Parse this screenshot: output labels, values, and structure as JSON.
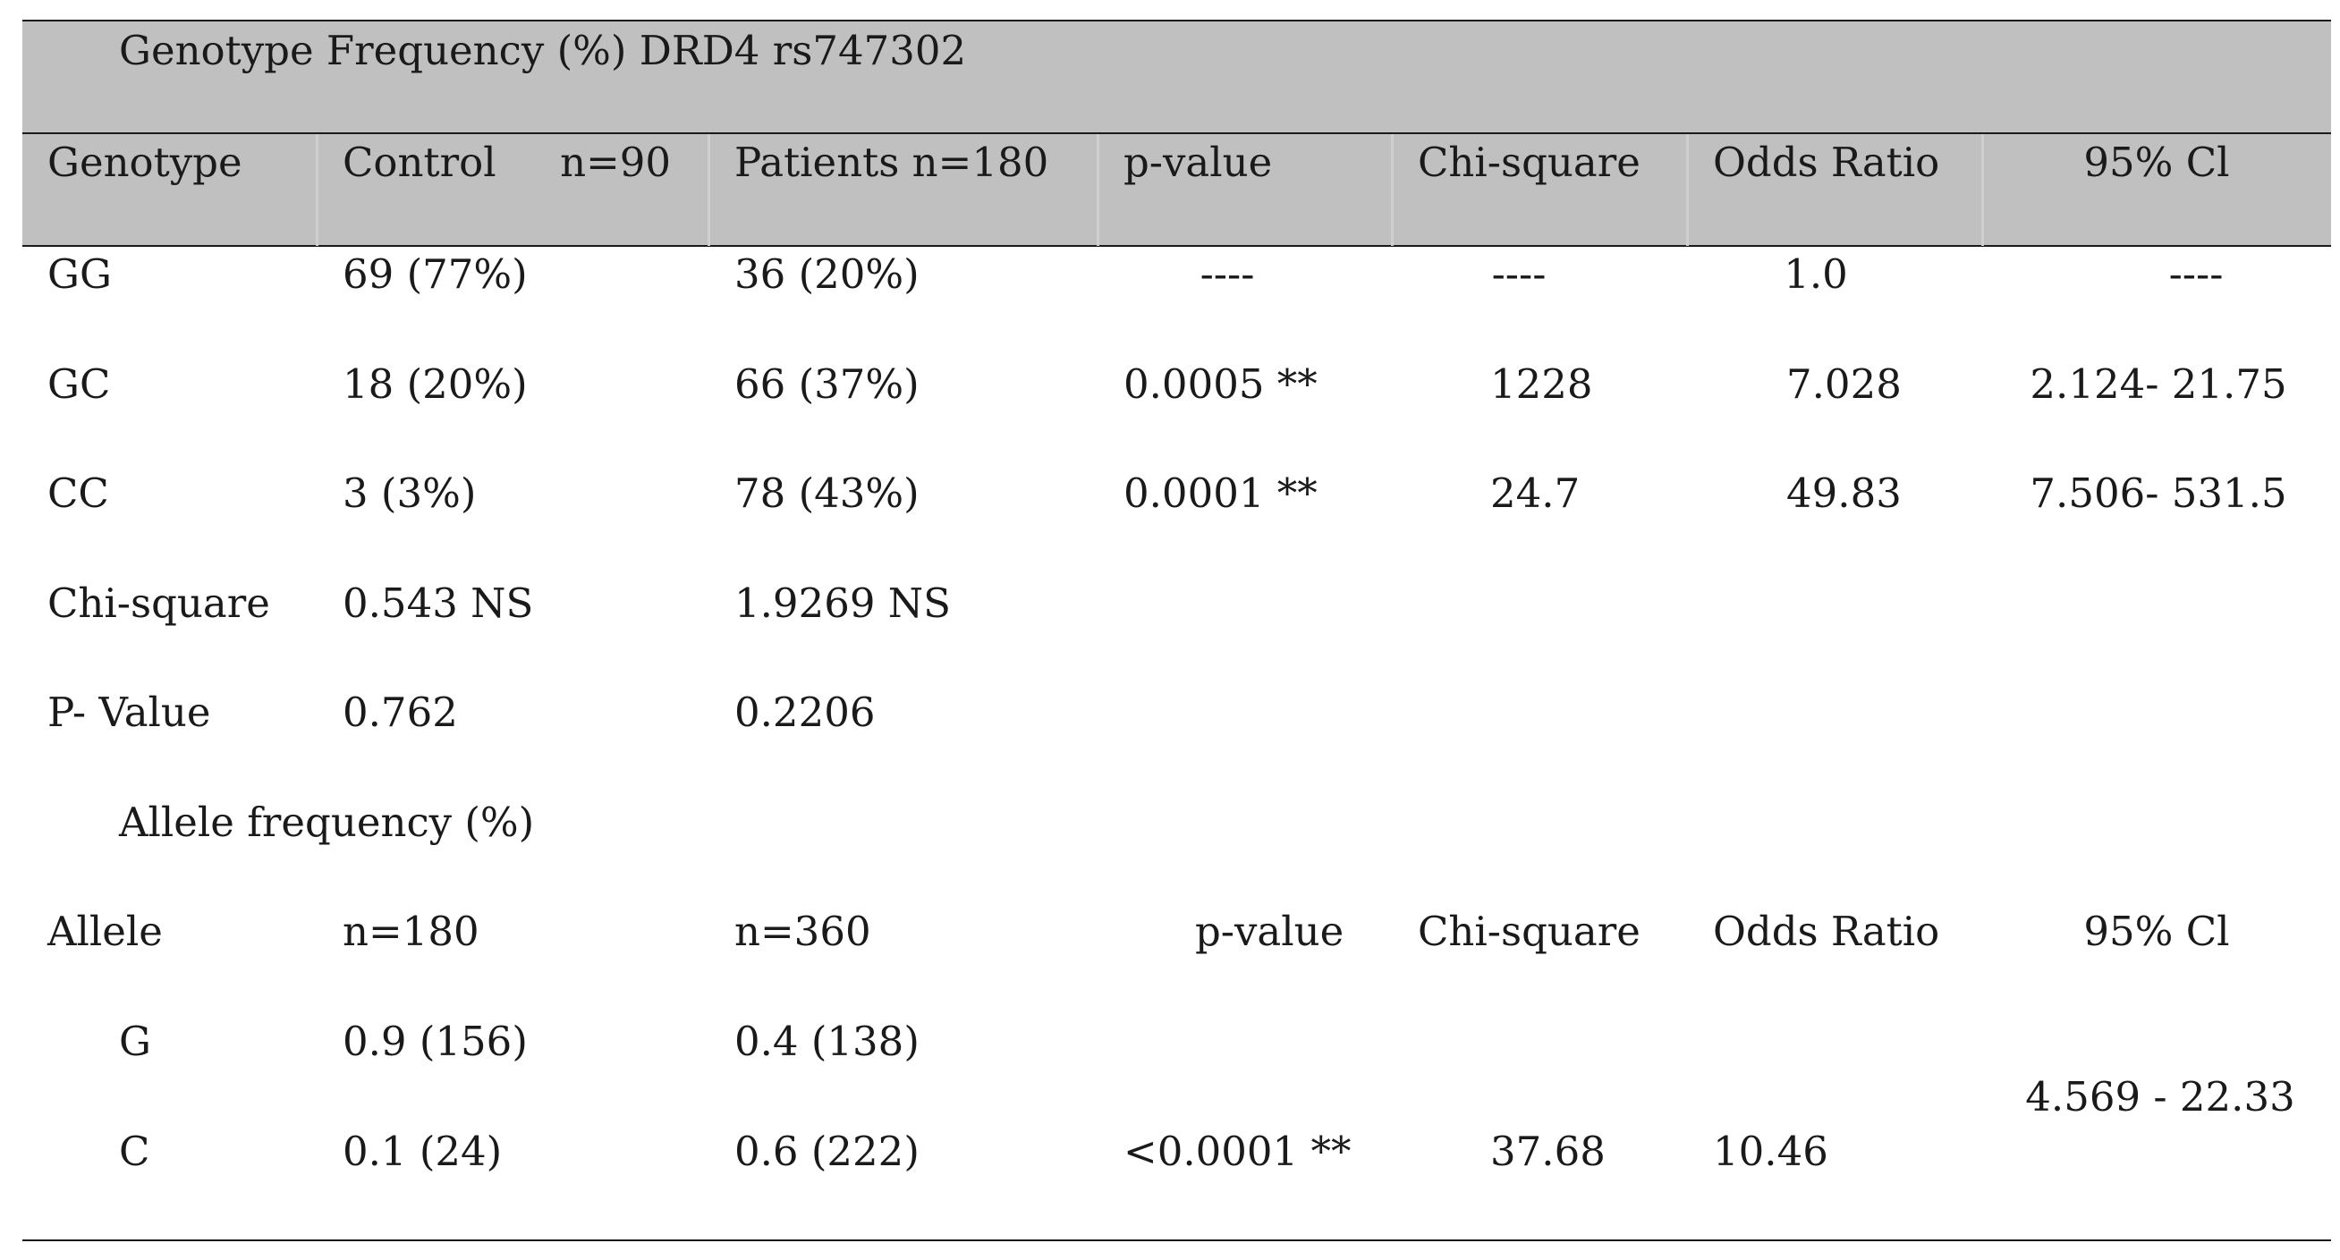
{
  "genotype_section": {
    "title": "Genotype Frequency (%) DRD4 rs747302",
    "headers": [
      "Genotype",
      "Control     n=90",
      "Patients n=180",
      "p-value",
      "Chi-square",
      "Odds Ratio",
      "95% Cl"
    ],
    "rows": [
      [
        "GG",
        "69 (77%)",
        "36 (20%)",
        "----",
        "----",
        "1.0",
        "----"
      ],
      [
        "GC",
        "18 (20%)",
        "66 (37%)",
        "0.0005 **",
        "1228",
        "7.028",
        "2.124- 21.75"
      ],
      [
        "CC",
        "3 (3%)",
        "78 (43%)",
        "0.0001 **",
        "24.7",
        "49.83",
        "7.506- 531.5"
      ]
    ],
    "chi_square": {
      "label": "Chi-square",
      "control": "0.543 NS",
      "patients": "1.9269 NS"
    },
    "p_value": {
      "label": "P- Value",
      "control": "0.762",
      "patients": "0.2206"
    }
  },
  "allele_section": {
    "title": "Allele frequency (%)",
    "headers": [
      "Allele",
      "n=180",
      "n=360",
      "p-value",
      "Chi-square",
      "Odds Ratio",
      "95% Cl"
    ],
    "rows": [
      [
        "G",
        "0.9 (156)",
        "0.4 (138)"
      ],
      [
        "C",
        "0.1 (24)",
        "0.6 (222)",
        "<0.0001 **",
        "37.68",
        "10.46"
      ]
    ],
    "ci": "4.569 - 22.33"
  },
  "colors": {
    "header_band": "#c0c0c0",
    "rule": "#1a1a1a",
    "text": "#1a1a1a"
  }
}
